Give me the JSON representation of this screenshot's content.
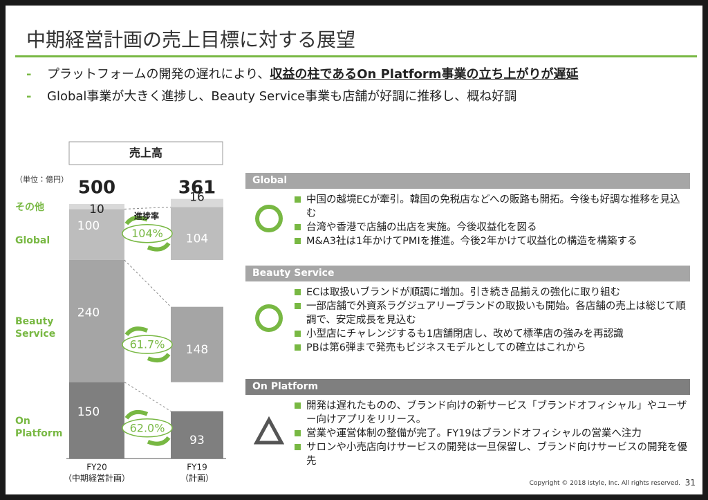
{
  "header": {
    "title": "中期経営計画の売上目標に対する展望",
    "bullets": [
      {
        "parts": [
          "プラットフォームの開発の遅れにより、",
          "収益の柱であるOn Platform事業の立ち上がりが遅延"
        ]
      },
      {
        "parts": [
          "Global事業が大きく進捗し、Beauty Service事業も店舗が好調に推移し、概ね好調"
        ]
      }
    ]
  },
  "chart_data": {
    "type": "bar",
    "stacked": true,
    "title": "売上高",
    "unit_label": "（単位：億円）",
    "categories": [
      "FY20",
      "FY19"
    ],
    "category_notes": [
      "（中期経営計画）",
      "（計画）"
    ],
    "totals": [
      500,
      361
    ],
    "series": [
      {
        "name": "On Platform",
        "color": "#7f7f7f",
        "values": [
          150,
          93
        ]
      },
      {
        "name": "Beauty Service",
        "color": "#a5a5a5",
        "values": [
          240,
          148
        ]
      },
      {
        "name": "Global",
        "color": "#bdbdbd",
        "values": [
          100,
          104
        ]
      },
      {
        "name": "その他",
        "color": "#d9d9d9",
        "values": [
          10,
          16
        ]
      }
    ],
    "legend_color": "#78b843",
    "progress_title": "進捗率",
    "progress_labels": [
      "62.0%",
      "61.7%",
      "104%"
    ]
  },
  "sections": [
    {
      "title": "Global",
      "header_color": "#a6a6a6",
      "symbol": "circle",
      "bullets": [
        "中国の越境ECが牽引。韓国の免税店などへの販路も開拓。今後も好調な推移を見込む",
        "台湾や香港で店舗の出店を実施。今後収益化を図る",
        "M&A3社は1年かけてPMIを推進。今後2年かけて収益化の構造を構築する"
      ]
    },
    {
      "title": "Beauty Service",
      "header_color": "#a6a6a6",
      "symbol": "circle",
      "bullets": [
        "ECは取扱いブランドが順調に増加。引き続き品揃えの強化に取り組む",
        "一部店舗で外資系ラグジュアリーブランドの取扱いも開始。各店舗の売上は総じて順調で、安定成長を見込む",
        "小型店にチャレンジするも1店舗閉店し、改めて標準店の強みを再認識",
        "PBは第6弾まで発売もビジネスモデルとしての確立はこれから"
      ]
    },
    {
      "title": "On Platform",
      "header_color": "#7f7f7f",
      "symbol": "triangle",
      "bullets": [
        "開発は遅れたものの、ブランド向けの新サービス「ブランドオフィシャル」やユーザー向けアプリをリリース。",
        "営業や運営体制の整備が完了。FY19はブランドオフィシャルの営業へ注力",
        "サロンや小売店向けサービスの開発は一旦保留し、ブランド向けサービスの開発を優先"
      ]
    }
  ],
  "footer": {
    "copyright": "Copyright © 2018 istyle, Inc. All rights reserved.",
    "page": "31"
  }
}
